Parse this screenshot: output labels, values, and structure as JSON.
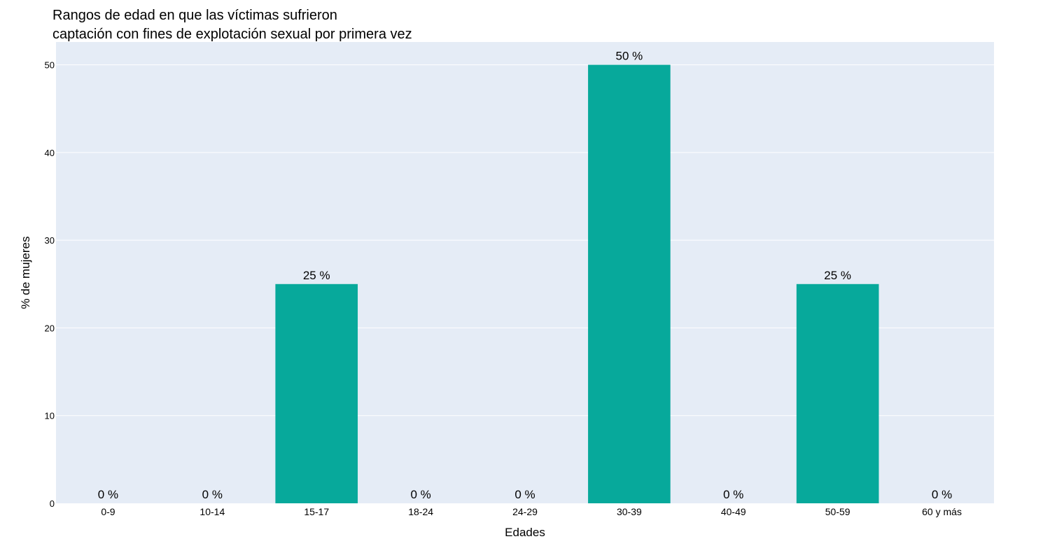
{
  "chart_data": {
    "type": "bar",
    "title_lines": [
      "Rangos de edad en que las víctimas sufrieron",
      "captación con fines de explotación sexual por primera vez"
    ],
    "xlabel": "Edades",
    "ylabel": "% de mujeres",
    "categories": [
      "0-9",
      "10-14",
      "15-17",
      "18-24",
      "24-29",
      "30-39",
      "40-49",
      "50-59",
      "60 y más"
    ],
    "values": [
      0,
      0,
      25,
      0,
      0,
      50,
      0,
      25,
      0
    ],
    "data_labels": [
      "0 %",
      "0 %",
      "25 %",
      "0 %",
      "0 %",
      "50 %",
      "0 %",
      "25 %",
      "0 %"
    ],
    "ylim": [
      0,
      52.6
    ],
    "yticks": [
      0,
      10,
      20,
      30,
      40,
      50
    ],
    "grid": true,
    "bar_color": "#07a99b",
    "plot_background": "#e5ecf6"
  }
}
